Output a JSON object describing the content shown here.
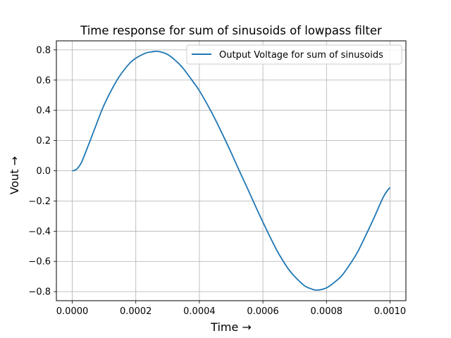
{
  "chart_data": {
    "type": "line",
    "title": "Time response for sum of sinusoids of lowpass filter",
    "xlabel": "Time →",
    "ylabel": "Vout →",
    "xlim": [
      -5e-05,
      0.00105
    ],
    "ylim": [
      -0.86,
      0.86
    ],
    "xticks": [
      0.0,
      0.0002,
      0.0004,
      0.0006,
      0.0008,
      0.001
    ],
    "xtick_labels": [
      "0.0000",
      "0.0002",
      "0.0004",
      "0.0006",
      "0.0008",
      "0.0010"
    ],
    "yticks": [
      -0.8,
      -0.6,
      -0.4,
      -0.2,
      0.0,
      0.2,
      0.4,
      0.6,
      0.8
    ],
    "ytick_labels": [
      "−0.8",
      "−0.6",
      "−0.4",
      "−0.2",
      "0.0",
      "0.2",
      "0.4",
      "0.6",
      "0.8"
    ],
    "grid": true,
    "legend_position": "top-right",
    "series": [
      {
        "name": "Output Voltage for sum of sinusoids",
        "color": "#1f77b4",
        "x": [
          0.0,
          1e-05,
          2e-05,
          3e-05,
          5e-05,
          8e-05,
          0.0001,
          0.00013,
          0.00015,
          0.00018,
          0.0002,
          0.00023,
          0.00025,
          0.00027,
          0.0003,
          0.00033,
          0.00035,
          0.00038,
          0.0004,
          0.00043,
          0.00045,
          0.00048,
          0.0005,
          0.00053,
          0.00055,
          0.00058,
          0.0006,
          0.00063,
          0.00065,
          0.00068,
          0.0007,
          0.00073,
          0.00075,
          0.00077,
          0.0008,
          0.00083,
          0.00085,
          0.00088,
          0.0009,
          0.00093,
          0.00095,
          0.00098,
          0.001
        ],
        "y": [
          0.0,
          0.005,
          0.025,
          0.06,
          0.165,
          0.33,
          0.435,
          0.56,
          0.63,
          0.71,
          0.745,
          0.778,
          0.787,
          0.79,
          0.77,
          0.72,
          0.675,
          0.59,
          0.53,
          0.42,
          0.34,
          0.21,
          0.12,
          -0.02,
          -0.11,
          -0.25,
          -0.34,
          -0.47,
          -0.55,
          -0.65,
          -0.7,
          -0.76,
          -0.78,
          -0.79,
          -0.775,
          -0.73,
          -0.69,
          -0.6,
          -0.53,
          -0.4,
          -0.31,
          -0.17,
          -0.11
        ]
      }
    ]
  }
}
